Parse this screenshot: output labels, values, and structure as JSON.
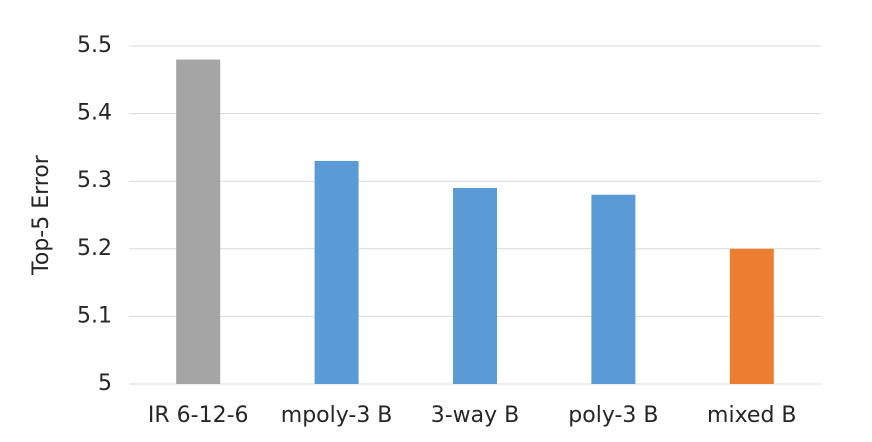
{
  "chart_data": {
    "type": "bar",
    "y_label": "Top-5 Error",
    "categories": [
      "IR 6-12-6",
      "mpoly-3 B",
      "3-way B",
      "poly-3 B",
      "mixed B"
    ],
    "values": [
      5.48,
      5.33,
      5.29,
      5.28,
      5.2
    ],
    "colors": [
      "#a5a5a5",
      "#5b9bd5",
      "#5b9bd5",
      "#5b9bd5",
      "#ed7d31"
    ],
    "ylim": [
      5,
      5.5
    ],
    "yticks": [
      5,
      5.1,
      5.2,
      5.3,
      5.4,
      5.5
    ],
    "grid": true
  }
}
